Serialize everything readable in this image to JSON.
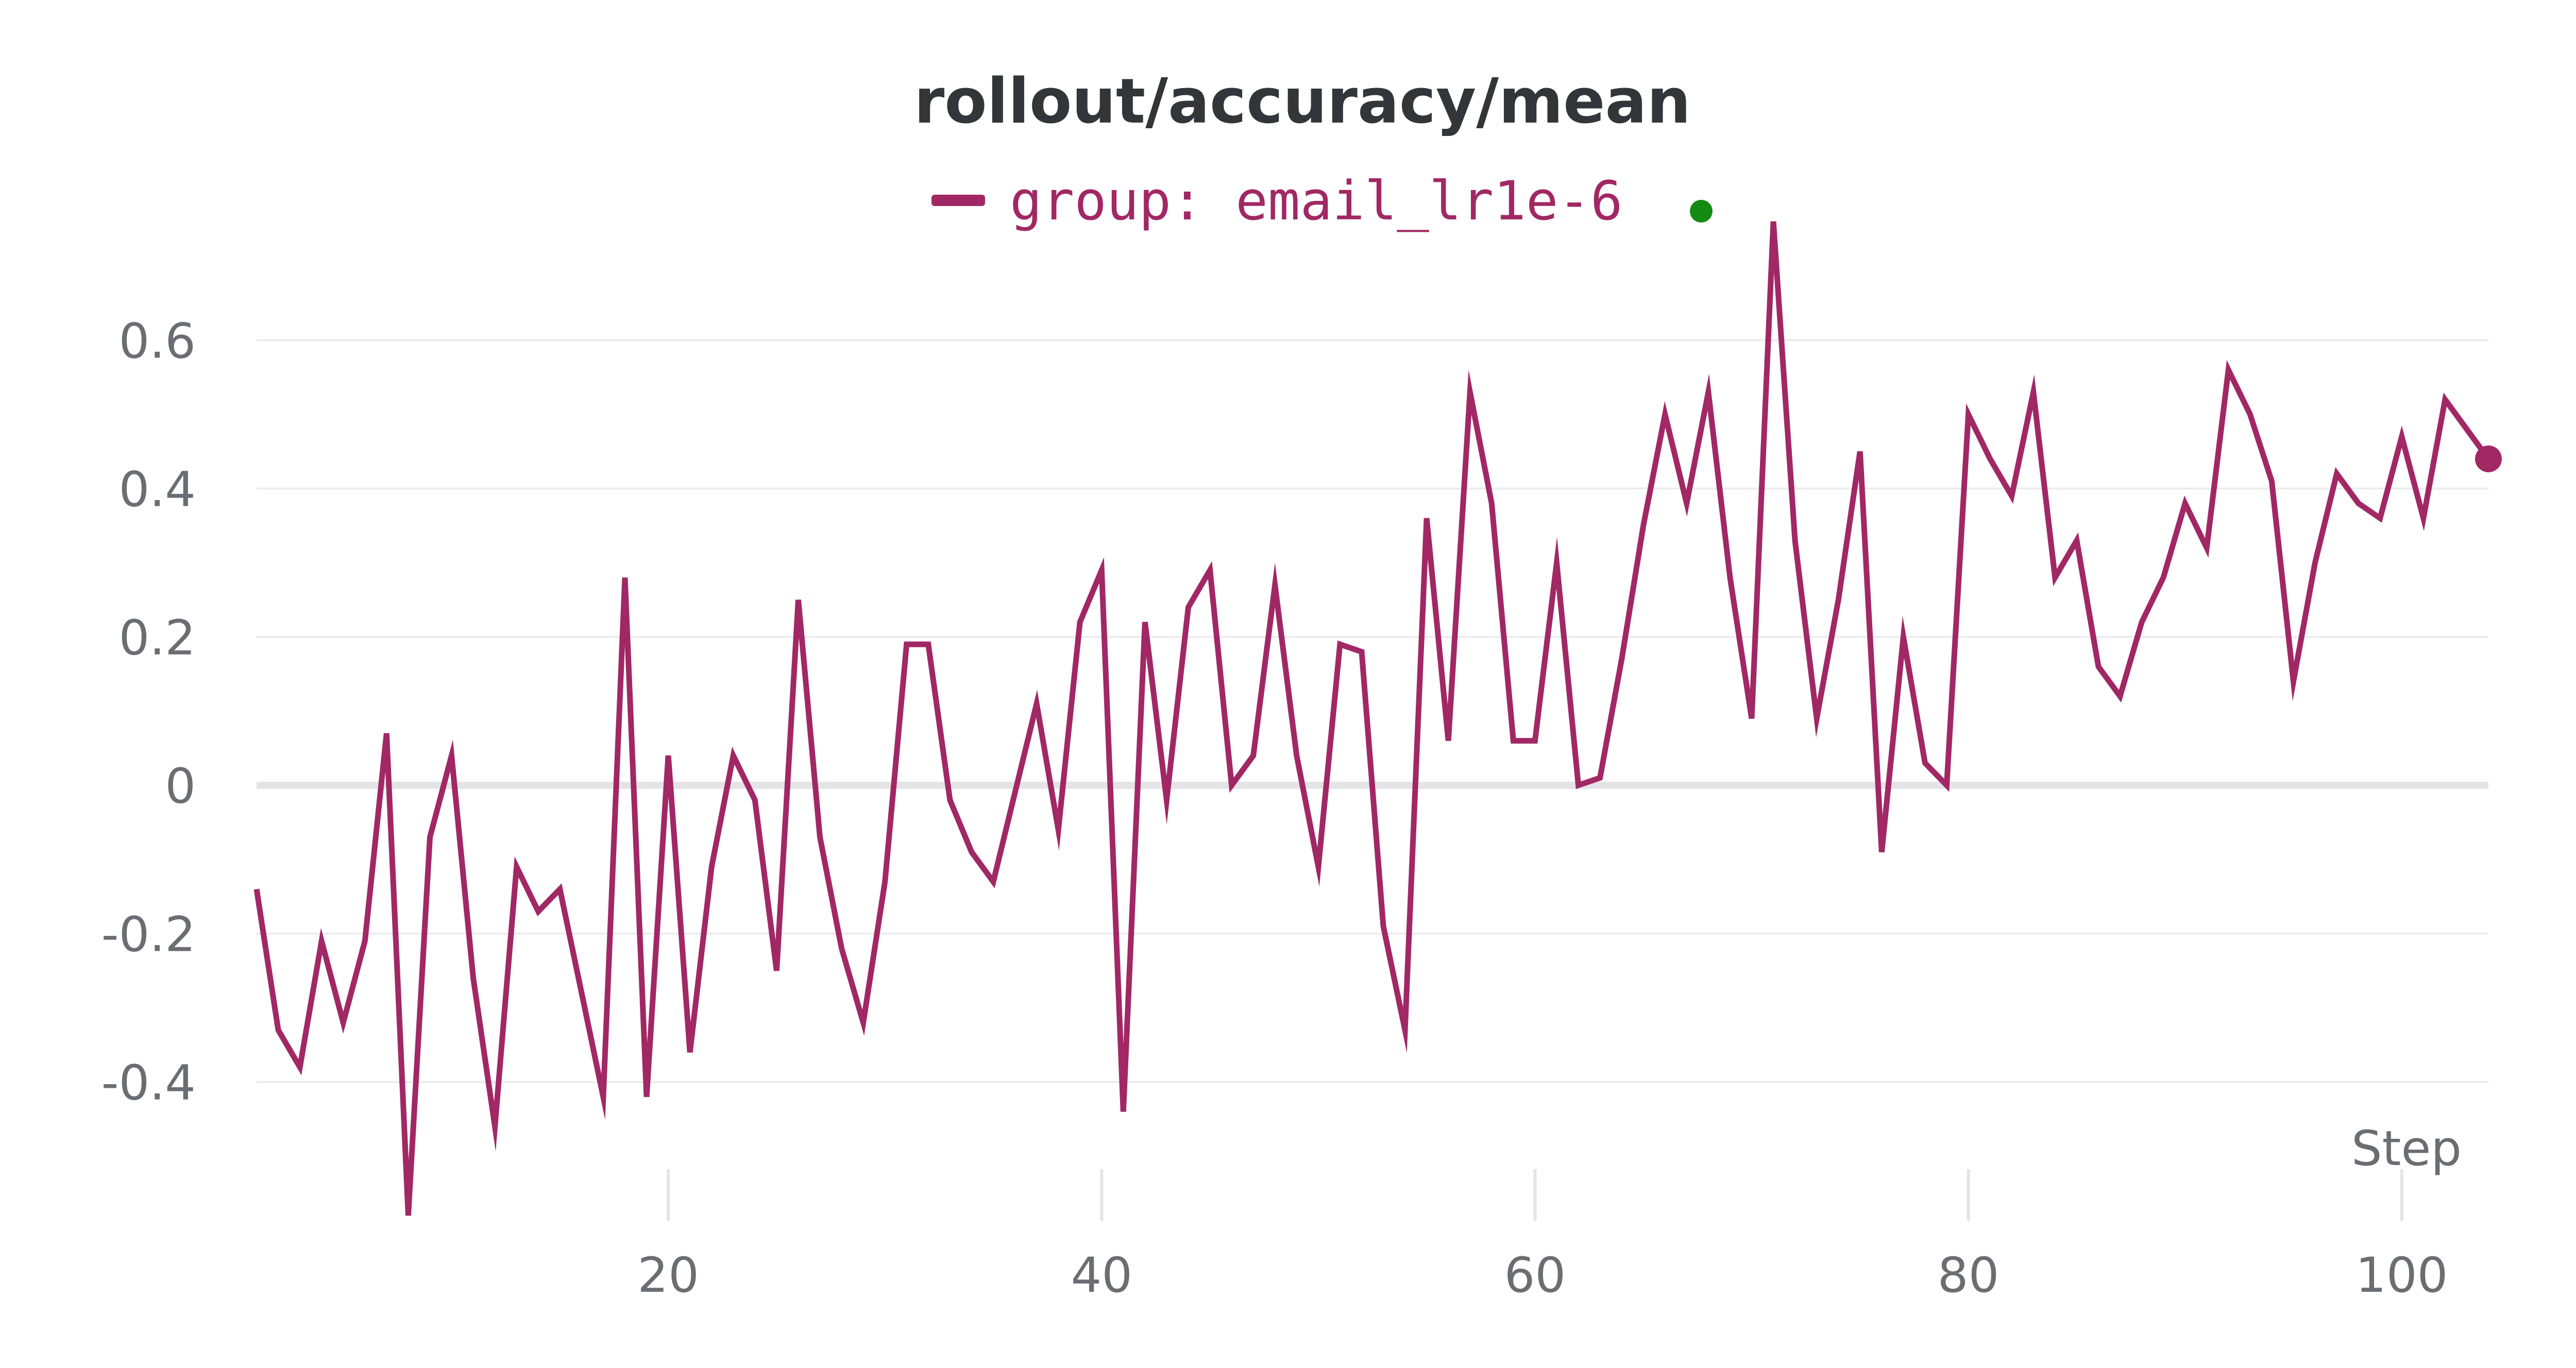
{
  "chart_data": {
    "type": "line",
    "title": "rollout/accuracy/mean",
    "xlabel": "Step",
    "ylabel": "",
    "xlim": [
      1,
      104
    ],
    "ylim": [
      -0.58,
      0.76
    ],
    "xticks": [
      20,
      40,
      60,
      80,
      100
    ],
    "xtick_labels": [
      "20",
      "40",
      "60",
      "80",
      "100"
    ],
    "yticks": [
      -0.4,
      -0.2,
      0,
      0.2,
      0.4,
      0.6
    ],
    "ytick_labels": [
      "-0.4",
      "-0.2",
      "0",
      "0.2",
      "0.4",
      "0.6"
    ],
    "grid": true,
    "legend_position": "top-center",
    "series": [
      {
        "name": "group: email_lr1e-6",
        "color": "#a12864",
        "status_color": "#138a13",
        "x": [
          1,
          2,
          3,
          4,
          5,
          6,
          7,
          8,
          9,
          10,
          11,
          12,
          13,
          14,
          15,
          16,
          17,
          18,
          19,
          20,
          21,
          22,
          23,
          24,
          25,
          26,
          27,
          28,
          29,
          30,
          31,
          32,
          33,
          34,
          35,
          36,
          37,
          38,
          39,
          40,
          41,
          42,
          43,
          44,
          45,
          46,
          47,
          48,
          49,
          50,
          51,
          52,
          53,
          54,
          55,
          56,
          57,
          58,
          59,
          60,
          61,
          62,
          63,
          64,
          65,
          66,
          67,
          68,
          69,
          70,
          71,
          72,
          73,
          74,
          75,
          76,
          77,
          78,
          79,
          80,
          81,
          82,
          83,
          84,
          85,
          86,
          87,
          88,
          89,
          90,
          91,
          92,
          93,
          94,
          95,
          96,
          97,
          98,
          99,
          100,
          101,
          102,
          103,
          104
        ],
        "y": [
          -0.14,
          -0.33,
          -0.38,
          -0.21,
          -0.32,
          -0.21,
          0.07,
          -0.58,
          -0.07,
          0.04,
          -0.26,
          -0.46,
          -0.11,
          -0.17,
          -0.14,
          -0.28,
          -0.42,
          0.28,
          -0.42,
          0.04,
          -0.36,
          -0.11,
          0.04,
          -0.02,
          -0.25,
          0.25,
          -0.07,
          -0.22,
          -0.32,
          -0.13,
          0.19,
          0.19,
          -0.02,
          -0.09,
          -0.13,
          -0.01,
          0.11,
          -0.06,
          0.22,
          0.29,
          -0.44,
          0.22,
          -0.02,
          0.24,
          0.29,
          0.0,
          0.04,
          0.27,
          0.04,
          -0.11,
          0.19,
          0.18,
          -0.19,
          -0.33,
          0.36,
          0.06,
          0.53,
          0.38,
          0.06,
          0.06,
          0.3,
          0.0,
          0.01,
          0.17,
          0.35,
          0.5,
          0.38,
          0.53,
          0.28,
          0.09,
          0.76,
          0.33,
          0.09,
          0.25,
          0.45,
          -0.09,
          0.2,
          0.03,
          0.0,
          0.5,
          0.44,
          0.39,
          0.53,
          0.28,
          0.33,
          0.16,
          0.12,
          0.22,
          0.28,
          0.38,
          0.32,
          0.56,
          0.5,
          0.41,
          0.14,
          0.3,
          0.42,
          0.38,
          0.36,
          0.47,
          0.36,
          0.52,
          0.48,
          0.44
        ]
      }
    ]
  }
}
